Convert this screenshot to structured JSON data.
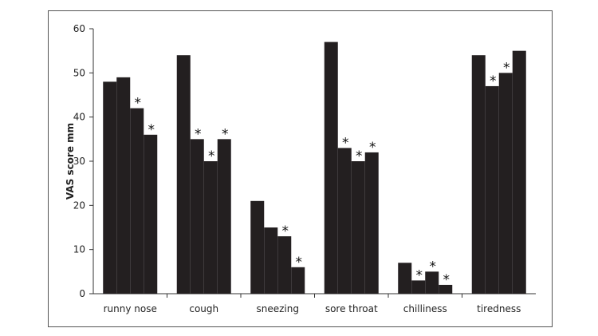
{
  "chart_data": {
    "type": "bar",
    "title": "",
    "xlabel": "",
    "ylabel": "VAS score mm",
    "ylim": [
      0,
      60
    ],
    "yticks": [
      0,
      10,
      20,
      30,
      40,
      50,
      60
    ],
    "grid": false,
    "legend": "none",
    "bar_color": "#231f20",
    "categories": [
      "runny nose",
      "cough",
      "sneezing",
      "sore throat",
      "chilliness",
      "tiredness"
    ],
    "groups": [
      {
        "category": "runny nose",
        "values": [
          48,
          49,
          42,
          36
        ],
        "significant": [
          false,
          false,
          true,
          true
        ]
      },
      {
        "category": "cough",
        "values": [
          54,
          35,
          30,
          35
        ],
        "significant": [
          false,
          true,
          true,
          true
        ]
      },
      {
        "category": "sneezing",
        "values": [
          21,
          15,
          13,
          6
        ],
        "significant": [
          false,
          false,
          true,
          true
        ]
      },
      {
        "category": "sore throat",
        "values": [
          57,
          33,
          30,
          32
        ],
        "significant": [
          false,
          true,
          true,
          true
        ]
      },
      {
        "category": "chilliness",
        "values": [
          7,
          3,
          5,
          2
        ],
        "significant": [
          false,
          true,
          true,
          true
        ]
      },
      {
        "category": "tiredness",
        "values": [
          54,
          47,
          50,
          55
        ],
        "significant": [
          false,
          true,
          true,
          false
        ]
      }
    ],
    "significance_marker": "*"
  }
}
